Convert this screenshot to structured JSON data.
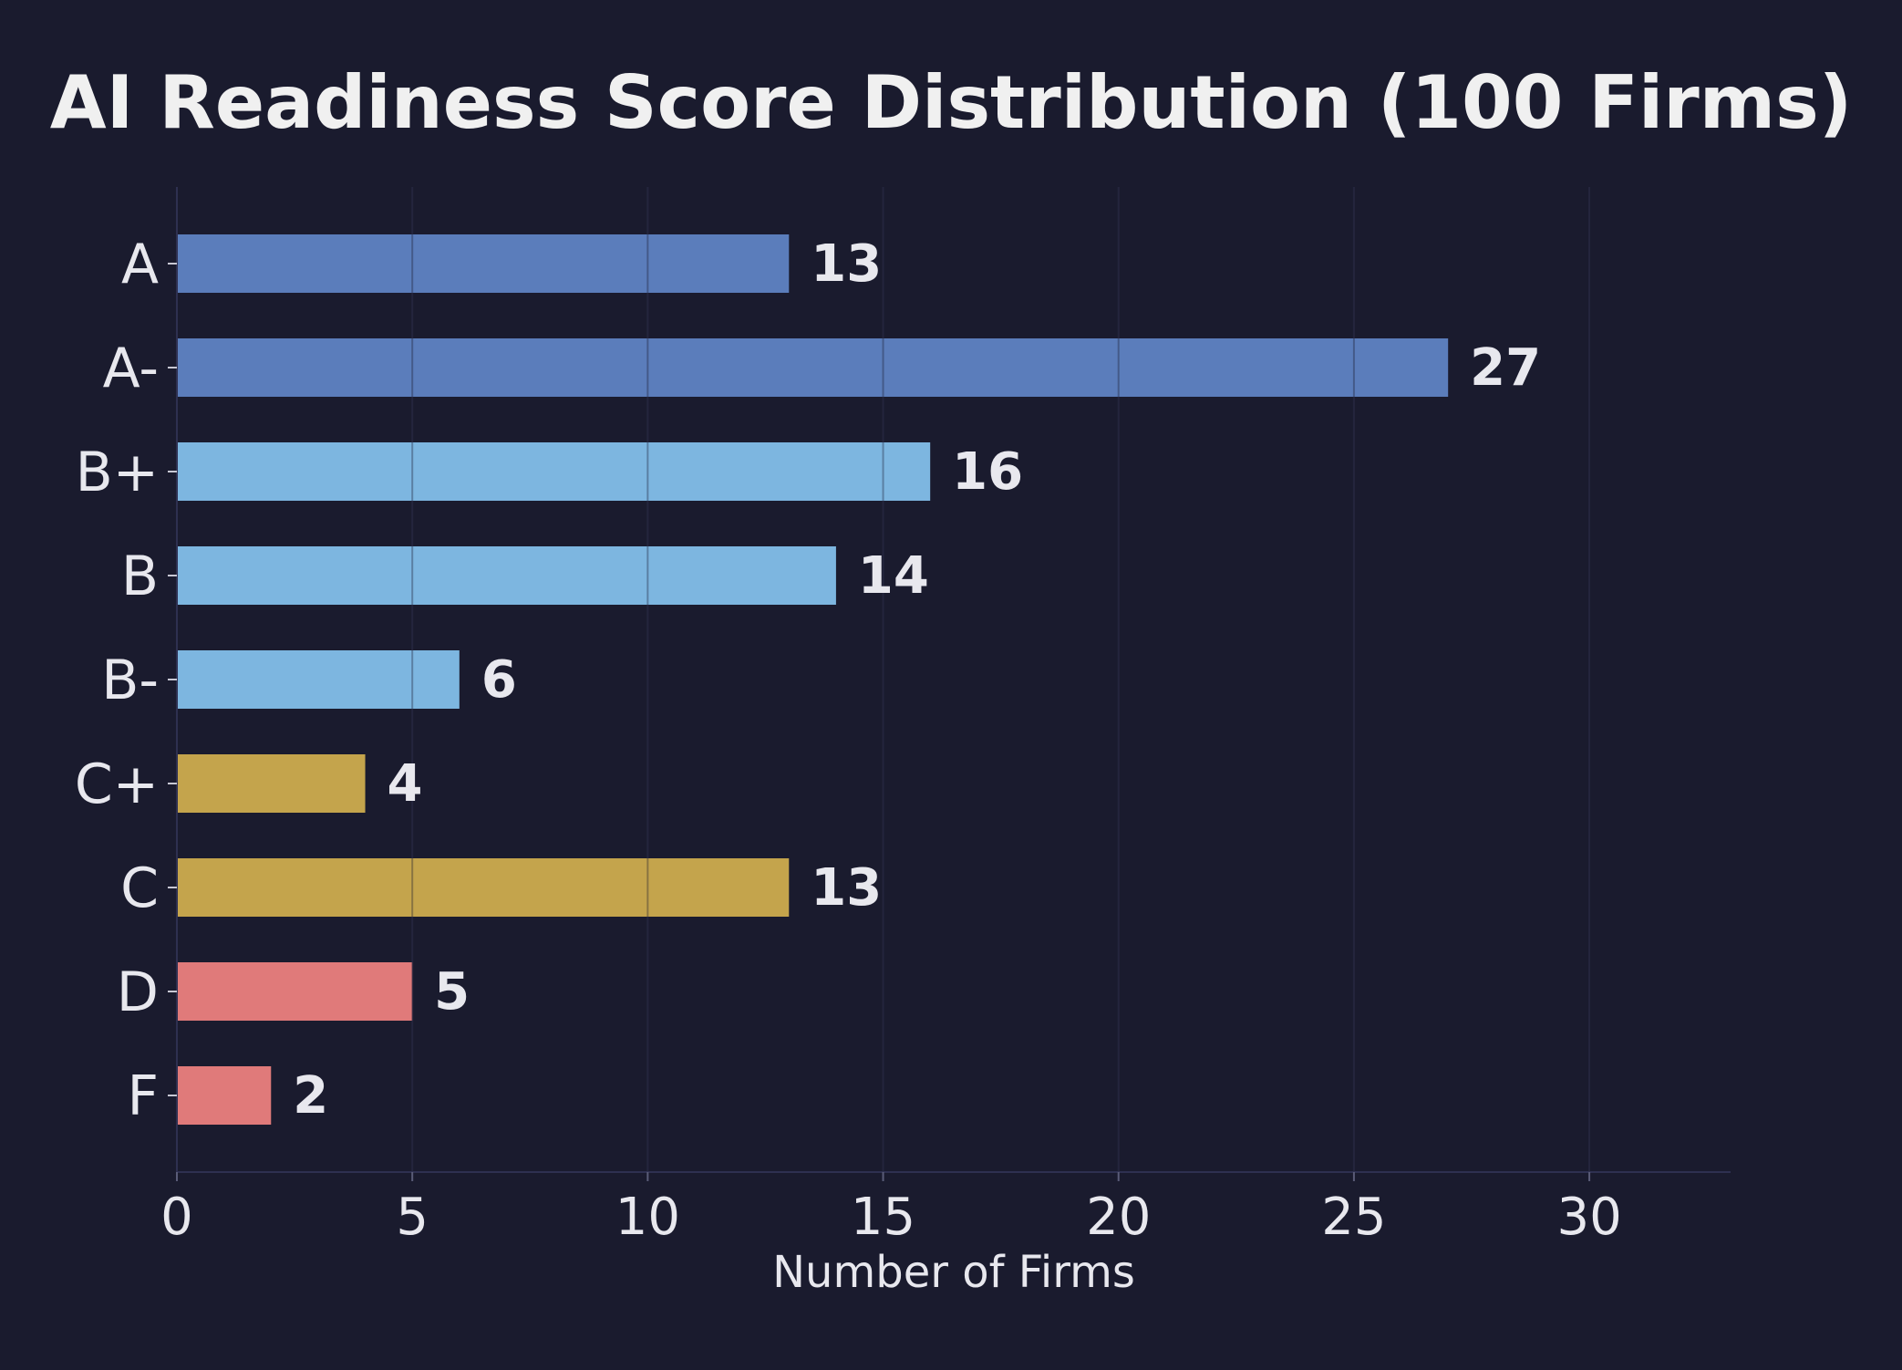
{
  "chart_data": {
    "type": "bar",
    "orientation": "horizontal",
    "title": "AI Readiness Score Distribution (100 Firms)",
    "xlabel": "Number of Firms",
    "ylabel": "",
    "categories": [
      "A",
      "A-",
      "B+",
      "B",
      "B-",
      "C+",
      "C",
      "D",
      "F"
    ],
    "values": [
      13,
      27,
      16,
      14,
      6,
      4,
      13,
      5,
      2
    ],
    "value_labels": [
      "13",
      "27",
      "16",
      "14",
      "6",
      "4",
      "13",
      "5",
      "2"
    ],
    "bar_colors": [
      "#5b7dbb",
      "#5b7dbb",
      "#7db6e0",
      "#7db6e0",
      "#7db6e0",
      "#c4a44c",
      "#c4a44c",
      "#e07a7a",
      "#e07a7a"
    ],
    "xlim": [
      0,
      33
    ],
    "xticks": [
      0,
      5,
      10,
      15,
      20,
      25,
      30
    ],
    "xtick_labels": [
      "0",
      "5",
      "10",
      "15",
      "20",
      "25",
      "30"
    ],
    "grid": true,
    "background_color": "#1a1b2e"
  }
}
